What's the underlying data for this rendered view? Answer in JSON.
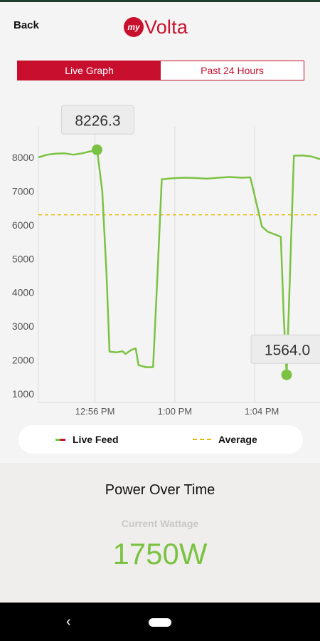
{
  "header": {
    "back_label": "Back",
    "logo_prefix": "my",
    "logo_text": "Volta"
  },
  "tabs": [
    {
      "label": "Live Graph",
      "active": true
    },
    {
      "label": "Past 24 Hours",
      "active": false
    }
  ],
  "chart_data": {
    "type": "line",
    "ylim": [
      900,
      8500
    ],
    "y_ticks": [
      "1000",
      "2000",
      "3000",
      "4000",
      "5000",
      "6000",
      "7000",
      "8000"
    ],
    "x_ticks": [
      "12:56 PM",
      "1:00 PM",
      "1:04 PM"
    ],
    "series": [
      {
        "name": "Live Feed",
        "color": "#7cc242",
        "points": [
          [
            0,
            8000
          ],
          [
            0.3,
            8080
          ],
          [
            0.6,
            8110
          ],
          [
            0.9,
            8120
          ],
          [
            1.2,
            8080
          ],
          [
            1.5,
            8120
          ],
          [
            1.7,
            8160
          ],
          [
            1.9,
            8200
          ],
          [
            2.02,
            8226.3
          ],
          [
            2.2,
            7000
          ],
          [
            2.35,
            4500
          ],
          [
            2.45,
            2250
          ],
          [
            2.7,
            2230
          ],
          [
            2.9,
            2260
          ],
          [
            3.0,
            2180
          ],
          [
            3.2,
            2300
          ],
          [
            3.35,
            2350
          ],
          [
            3.45,
            1850
          ],
          [
            3.7,
            1790
          ],
          [
            3.95,
            1790
          ],
          [
            4.1,
            4500
          ],
          [
            4.25,
            7350
          ],
          [
            4.6,
            7380
          ],
          [
            5.0,
            7400
          ],
          [
            5.4,
            7390
          ],
          [
            5.8,
            7370
          ],
          [
            6.2,
            7400
          ],
          [
            6.6,
            7420
          ],
          [
            7.0,
            7400
          ],
          [
            7.3,
            7410
          ],
          [
            7.55,
            6500
          ],
          [
            7.7,
            5950
          ],
          [
            7.9,
            5800
          ],
          [
            8.2,
            5700
          ],
          [
            8.35,
            5650
          ],
          [
            8.45,
            3300
          ],
          [
            8.55,
            1564.0
          ],
          [
            8.8,
            8050
          ],
          [
            9.1,
            8060
          ],
          [
            9.4,
            8030
          ],
          [
            9.7,
            7950
          ]
        ]
      }
    ],
    "average": {
      "name": "Average",
      "value": 6300,
      "color": "#e6b800"
    },
    "annotations": [
      {
        "label": "8226.3",
        "x": 2.02,
        "y": 8226.3
      },
      {
        "label": "1564.0",
        "x": 8.55,
        "y": 1564.0
      }
    ],
    "grid": true
  },
  "legend": {
    "live_label": "Live Feed",
    "average_label": "Average"
  },
  "summary": {
    "title": "Power Over Time",
    "subtitle": "Current Wattage",
    "value": "1750W"
  },
  "colors": {
    "brand": "#c8102e",
    "accent": "#7cc242",
    "average": "#e6b800"
  },
  "navbar": {
    "back_icon": "nav-back-icon",
    "home_icon": "nav-home-pill"
  }
}
